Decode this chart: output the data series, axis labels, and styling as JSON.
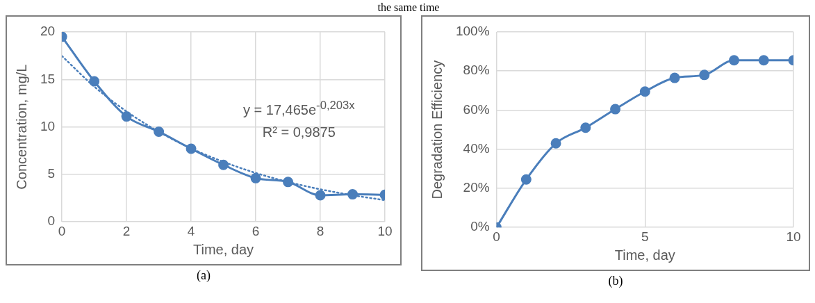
{
  "chart_data": [
    {
      "type": "line",
      "xlabel": "Time, day",
      "ylabel": "Concentration, mg/L",
      "xlim": [
        0,
        10
      ],
      "xticks": [
        0,
        2,
        4,
        6,
        8,
        10
      ],
      "ylim": [
        0,
        20
      ],
      "yticks": [
        0,
        5,
        10,
        15,
        20
      ],
      "grid": true,
      "annotations": [
        "the same time",
        "y = 17,465e$^{-0,203x}$",
        "R² = 0,9875",
        "(a)"
      ],
      "series": [
        {
          "color": "#4a7ebb",
          "marker": "circle",
          "line_style": "solid",
          "x": [
            0,
            1,
            2,
            3,
            4,
            5,
            6,
            7,
            8,
            9,
            10
          ],
          "values": [
            19.5,
            14.8,
            11.1,
            9.5,
            7.7,
            6.0,
            4.6,
            4.2,
            2.8,
            2.9,
            2.85
          ]
        },
        {
          "color": "#4a7ebb",
          "marker": "none",
          "line_style": "dotted",
          "x": [
            0,
            1,
            2,
            3,
            4,
            5,
            6,
            7,
            8,
            9,
            10
          ],
          "values": [
            17.47,
            14.25,
            11.63,
            9.49,
            7.74,
            6.32,
            5.15,
            4.2,
            3.43,
            2.8,
            2.28
          ]
        }
      ]
    },
    {
      "type": "line",
      "xlabel": "Time, day",
      "ylabel": "Degradation Efficiency",
      "xlim": [
        0,
        10
      ],
      "xticks": [
        0,
        5,
        10
      ],
      "ylim": [
        0,
        100
      ],
      "yticks": [
        {
          "value": 0,
          "label": "0%"
        },
        {
          "value": 20,
          "label": "20%"
        },
        {
          "value": 40,
          "label": "40%"
        },
        {
          "value": 60,
          "label": "60%"
        },
        {
          "value": 80,
          "label": "80%"
        },
        {
          "value": 100,
          "label": "100%"
        }
      ],
      "grid": true,
      "annotations": [
        "(b)"
      ],
      "series": [
        {
          "color": "#4a7ebb",
          "marker": "circle",
          "line_style": "solid",
          "x": [
            0,
            1,
            2,
            3,
            4,
            5,
            6,
            7,
            8,
            9,
            10
          ],
          "values": [
            0,
            24.5,
            43,
            51,
            60.5,
            69.5,
            76.5,
            78,
            85.5,
            85.5,
            85.5
          ]
        }
      ]
    }
  ]
}
